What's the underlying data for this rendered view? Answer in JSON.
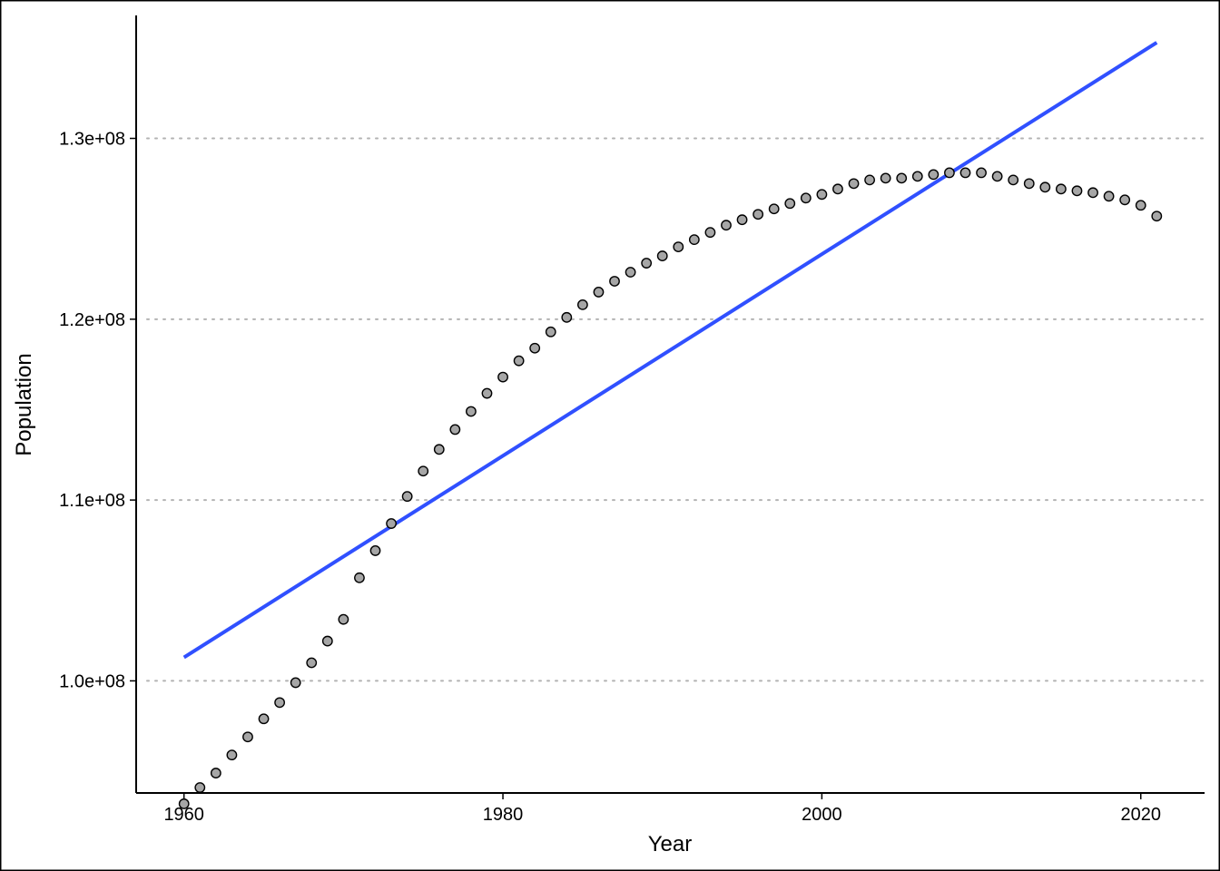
{
  "chart_data": {
    "type": "scatter",
    "title": "",
    "xlabel": "Year",
    "ylabel": "Population",
    "xlim": [
      1957,
      2024
    ],
    "ylim": [
      93800000,
      136800000
    ],
    "x_ticks": [
      1960,
      1980,
      2000,
      2020
    ],
    "x_tick_labels": [
      "1960",
      "1980",
      "2000",
      "2020"
    ],
    "y_ticks": [
      100000000,
      110000000,
      120000000,
      130000000
    ],
    "y_tick_labels": [
      "1.0e+08",
      "1.1e+08",
      "1.2e+08",
      "1.3e+08"
    ],
    "grid": "horizontal dotted major lines",
    "legend": "none",
    "colors": {
      "point_fill": "#a6a6a6",
      "point_stroke": "#000000",
      "trend_line": "#3050ff",
      "grid": "#b3b3b3"
    },
    "series": [
      {
        "type": "scatter",
        "x": [
          1960,
          1961,
          1962,
          1963,
          1964,
          1965,
          1966,
          1967,
          1968,
          1969,
          1970,
          1971,
          1972,
          1973,
          1974,
          1975,
          1976,
          1977,
          1978,
          1979,
          1980,
          1981,
          1982,
          1983,
          1984,
          1985,
          1986,
          1987,
          1988,
          1989,
          1990,
          1991,
          1992,
          1993,
          1994,
          1995,
          1996,
          1997,
          1998,
          1999,
          2000,
          2001,
          2002,
          2003,
          2004,
          2005,
          2006,
          2007,
          2008,
          2009,
          2010,
          2011,
          2012,
          2013,
          2014,
          2015,
          2016,
          2017,
          2018,
          2019,
          2020,
          2021
        ],
        "values": [
          93200000,
          94100000,
          94900000,
          95900000,
          96900000,
          97900000,
          98800000,
          99900000,
          101000000,
          102200000,
          103400000,
          105700000,
          107200000,
          108700000,
          110200000,
          111600000,
          112800000,
          113900000,
          114900000,
          115900000,
          116800000,
          117700000,
          118400000,
          119300000,
          120100000,
          120800000,
          121500000,
          122100000,
          122600000,
          123100000,
          123500000,
          124000000,
          124400000,
          124800000,
          125200000,
          125500000,
          125800000,
          126100000,
          126400000,
          126700000,
          126900000,
          127200000,
          127500000,
          127700000,
          127800000,
          127800000,
          127900000,
          128000000,
          128100000,
          128100000,
          128100000,
          127900000,
          127700000,
          127500000,
          127300000,
          127200000,
          127100000,
          127000000,
          126800000,
          126600000,
          126300000,
          125700000
        ]
      },
      {
        "type": "line",
        "fit": "linear",
        "x": [
          1960,
          2021
        ],
        "values": [
          101300000,
          135300000
        ]
      }
    ]
  }
}
